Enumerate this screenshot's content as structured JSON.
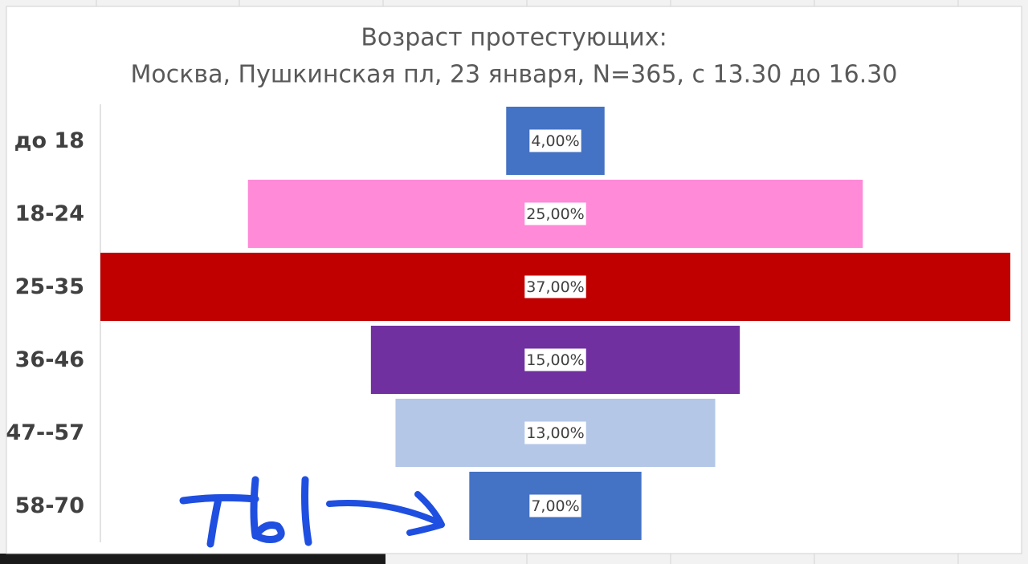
{
  "chart_data": {
    "type": "funnel",
    "title": "Возраст протестующих:",
    "subtitle": "Москва, Пушкинская пл, 23 января, N=365, с 13.30 до 16.30",
    "categories": [
      "до 18",
      "18-24",
      "25-35",
      "36-46",
      "47--57",
      "58-70"
    ],
    "values": [
      4,
      25,
      37,
      15,
      13,
      7
    ],
    "value_labels": [
      "4,00%",
      "25,00%",
      "37,00%",
      "15,00%",
      "13,00%",
      "7,00%"
    ],
    "colors": [
      "#4472c4",
      "#ff8ad8",
      "#c00000",
      "#7030a0",
      "#b4c7e7",
      "#4472c4"
    ],
    "annotation": "ты"
  }
}
